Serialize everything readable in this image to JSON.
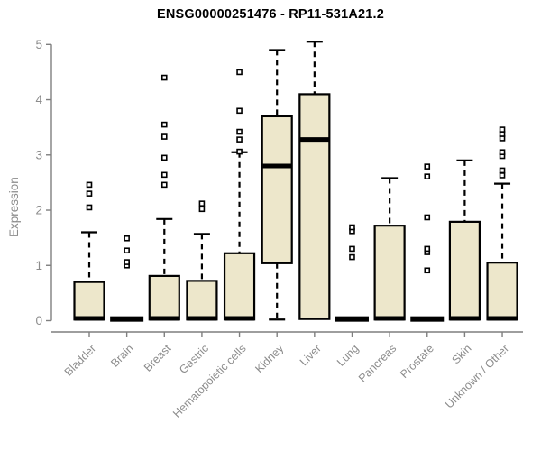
{
  "chart_data": {
    "type": "boxplot",
    "title": "ENSG00000251476 - RP11-531A21.2",
    "ylabel": "Expression",
    "xlabel": "",
    "ylim": [
      0,
      5
    ],
    "yticks": [
      0,
      1,
      2,
      3,
      4,
      5
    ],
    "grid": false,
    "legend": "none",
    "categories": [
      "Bladder",
      "Brain",
      "Breast",
      "Gastric",
      "Hematopoietic cells",
      "Kidney",
      "Liver",
      "Lung",
      "Pancreas",
      "Prostate",
      "Skin",
      "Unknown / Other"
    ],
    "boxes": [
      {
        "label": "Bladder",
        "low": 0.02,
        "q1": 0.02,
        "median": 0.04,
        "q3": 0.7,
        "high": 1.6,
        "outliers": [
          2.05,
          2.3,
          2.46
        ]
      },
      {
        "label": "Brain",
        "low": 0.02,
        "q1": 0.02,
        "median": 0.03,
        "q3": 0.04,
        "high": 0.05,
        "outliers": [
          1.0,
          1.06,
          1.27,
          1.49
        ]
      },
      {
        "label": "Breast",
        "low": 0.02,
        "q1": 0.02,
        "median": 0.04,
        "q3": 0.81,
        "high": 1.84,
        "outliers": [
          2.46,
          2.64,
          2.95,
          3.33,
          3.55,
          4.4
        ]
      },
      {
        "label": "Gastric",
        "low": 0.02,
        "q1": 0.02,
        "median": 0.04,
        "q3": 0.72,
        "high": 1.57,
        "outliers": [
          2.02,
          2.12
        ]
      },
      {
        "label": "Hematopoietic cells",
        "low": 0.02,
        "q1": 0.02,
        "median": 0.04,
        "q3": 1.22,
        "high": 3.05,
        "outliers": [
          3.06,
          3.28,
          3.42,
          3.8,
          4.5
        ]
      },
      {
        "label": "Kidney",
        "low": 0.02,
        "q1": 1.04,
        "median": 2.8,
        "q3": 3.7,
        "high": 4.9,
        "outliers": []
      },
      {
        "label": "Liver",
        "low": 0.03,
        "q1": 0.03,
        "median": 3.28,
        "q3": 4.1,
        "high": 5.05,
        "outliers": []
      },
      {
        "label": "Lung",
        "low": 0.02,
        "q1": 0.02,
        "median": 0.03,
        "q3": 0.04,
        "high": 0.05,
        "outliers": [
          1.15,
          1.3,
          1.62,
          1.69
        ]
      },
      {
        "label": "Pancreas",
        "low": 0.02,
        "q1": 0.02,
        "median": 0.04,
        "q3": 1.72,
        "high": 2.58,
        "outliers": []
      },
      {
        "label": "Prostate",
        "low": 0.02,
        "q1": 0.02,
        "median": 0.03,
        "q3": 0.04,
        "high": 0.05,
        "outliers": [
          0.91,
          1.24,
          1.3,
          1.87,
          2.61,
          2.79
        ]
      },
      {
        "label": "Skin",
        "low": 0.02,
        "q1": 0.02,
        "median": 0.04,
        "q3": 1.79,
        "high": 2.9,
        "outliers": []
      },
      {
        "label": "Unknown / Other",
        "low": 0.02,
        "q1": 0.02,
        "median": 0.04,
        "q3": 1.05,
        "high": 2.48,
        "outliers": [
          2.63,
          2.72,
          2.98,
          3.05,
          3.3,
          3.38,
          3.46
        ]
      }
    ],
    "colors": {
      "box_fill": "#EDE7CB",
      "box_stroke": "#000000",
      "median": "#000000",
      "whisker": "#000000",
      "outlier_fill": "#ffffff",
      "axis": "#7f7f7f",
      "tick_label": "#8c8c8c",
      "title": "#000000",
      "background": "#ffffff"
    }
  }
}
